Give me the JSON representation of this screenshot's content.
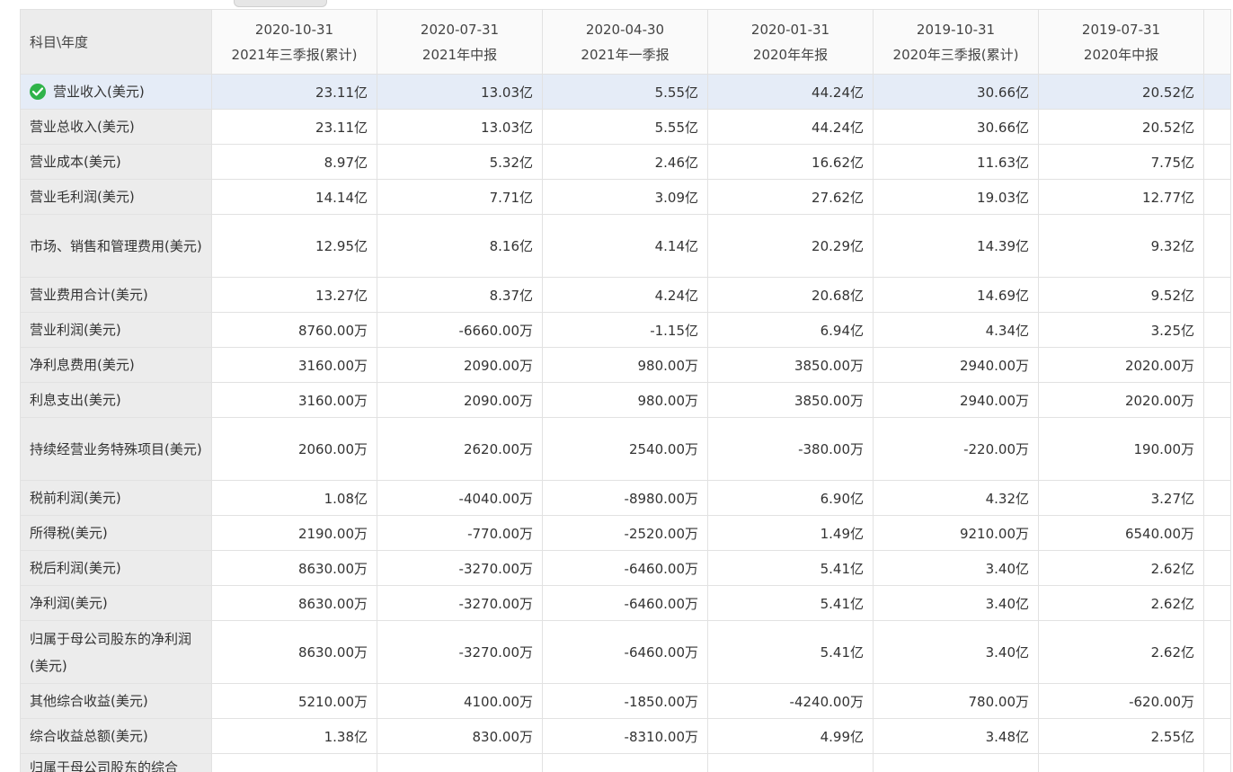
{
  "table": {
    "corner_label": "科目\\年度",
    "columns": [
      {
        "date": "2020-10-31",
        "period": "2021年三季报(累计)"
      },
      {
        "date": "2020-07-31",
        "period": "2021年中报"
      },
      {
        "date": "2020-04-30",
        "period": "2021年一季报"
      },
      {
        "date": "2020-01-31",
        "period": "2020年年报"
      },
      {
        "date": "2019-10-31",
        "period": "2020年三季报(累计)"
      },
      {
        "date": "2019-07-31",
        "period": "2020年中报"
      }
    ],
    "rows": [
      {
        "label": "营业收入(美元)",
        "values": [
          "23.11亿",
          "13.03亿",
          "5.55亿",
          "44.24亿",
          "30.66亿",
          "20.52亿"
        ]
      },
      {
        "label": "营业总收入(美元)",
        "values": [
          "23.11亿",
          "13.03亿",
          "5.55亿",
          "44.24亿",
          "30.66亿",
          "20.52亿"
        ]
      },
      {
        "label": "营业成本(美元)",
        "values": [
          "8.97亿",
          "5.32亿",
          "2.46亿",
          "16.62亿",
          "11.63亿",
          "7.75亿"
        ]
      },
      {
        "label": "营业毛利润(美元)",
        "values": [
          "14.14亿",
          "7.71亿",
          "3.09亿",
          "27.62亿",
          "19.03亿",
          "12.77亿"
        ]
      },
      {
        "label": "市场、销售和管理费用(美元)",
        "values": [
          "12.95亿",
          "8.16亿",
          "4.14亿",
          "20.29亿",
          "14.39亿",
          "9.32亿"
        ]
      },
      {
        "label": "营业费用合计(美元)",
        "values": [
          "13.27亿",
          "8.37亿",
          "4.24亿",
          "20.68亿",
          "14.69亿",
          "9.52亿"
        ]
      },
      {
        "label": "营业利润(美元)",
        "values": [
          "8760.00万",
          "-6660.00万",
          "-1.15亿",
          "6.94亿",
          "4.34亿",
          "3.25亿"
        ]
      },
      {
        "label": "净利息费用(美元)",
        "values": [
          "3160.00万",
          "2090.00万",
          "980.00万",
          "3850.00万",
          "2940.00万",
          "2020.00万"
        ]
      },
      {
        "label": "利息支出(美元)",
        "values": [
          "3160.00万",
          "2090.00万",
          "980.00万",
          "3850.00万",
          "2940.00万",
          "2020.00万"
        ]
      },
      {
        "label": "持续经营业务特殊项目(美元)",
        "values": [
          "2060.00万",
          "2620.00万",
          "2540.00万",
          "-380.00万",
          "-220.00万",
          "190.00万"
        ]
      },
      {
        "label": "税前利润(美元)",
        "values": [
          "1.08亿",
          "-4040.00万",
          "-8980.00万",
          "6.90亿",
          "4.32亿",
          "3.27亿"
        ]
      },
      {
        "label": "所得税(美元)",
        "values": [
          "2190.00万",
          "-770.00万",
          "-2520.00万",
          "1.49亿",
          "9210.00万",
          "6540.00万"
        ]
      },
      {
        "label": "税后利润(美元)",
        "values": [
          "8630.00万",
          "-3270.00万",
          "-6460.00万",
          "5.41亿",
          "3.40亿",
          "2.62亿"
        ]
      },
      {
        "label": "净利润(美元)",
        "values": [
          "8630.00万",
          "-3270.00万",
          "-6460.00万",
          "5.41亿",
          "3.40亿",
          "2.62亿"
        ]
      },
      {
        "label": "归属于母公司股东的净利润(美元)",
        "values": [
          "8630.00万",
          "-3270.00万",
          "-6460.00万",
          "5.41亿",
          "3.40亿",
          "2.62亿"
        ]
      },
      {
        "label": "其他综合收益(美元)",
        "values": [
          "5210.00万",
          "4100.00万",
          "-1850.00万",
          "-4240.00万",
          "780.00万",
          "-620.00万"
        ]
      },
      {
        "label": "综合收益总额(美元)",
        "values": [
          "1.38亿",
          "830.00万",
          "-8310.00万",
          "4.99亿",
          "3.48亿",
          "2.55亿"
        ]
      },
      {
        "label": "归属于母公司股东的综合",
        "values": [
          "",
          "",
          "",
          "",
          "",
          ""
        ]
      }
    ],
    "selected_row": 0
  },
  "icons": {
    "selected_row_marker": "check-circle-icon"
  },
  "colors": {
    "check": "#2fb34a",
    "selected_row_bg": "#e5ecf7",
    "label_col_bg": "#ececec"
  }
}
